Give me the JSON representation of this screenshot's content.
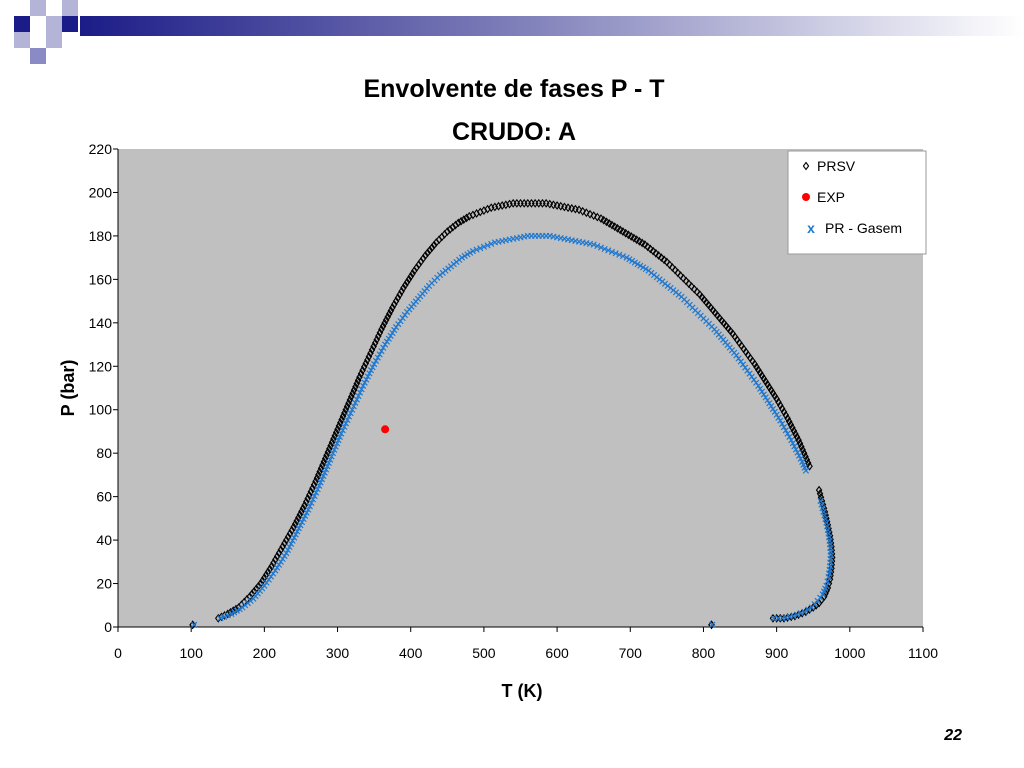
{
  "slide": {
    "page_number": "22"
  },
  "chart_data": {
    "type": "scatter",
    "title": "Envolvente de fases P - T",
    "subtitle": "CRUDO: A",
    "xlabel": "T (K)",
    "ylabel": "P (bar)",
    "xlim": [
      0,
      1100
    ],
    "ylim": [
      0,
      220
    ],
    "xticks": [
      0,
      100,
      200,
      300,
      400,
      500,
      600,
      700,
      800,
      900,
      1000,
      1100
    ],
    "yticks": [
      0,
      20,
      40,
      60,
      80,
      100,
      120,
      140,
      160,
      180,
      200,
      220
    ],
    "grid": false,
    "legend_position": "top-right",
    "plot_background": "#c0c0c0",
    "series": [
      {
        "name": "PRSV",
        "marker": "diamond-open",
        "color": "#000000",
        "segments": [
          [
            [
              102,
              1
            ],
            [
              102,
              1
            ]
          ],
          [
            [
              137,
              4
            ],
            [
              150,
              6
            ],
            [
              165,
              9
            ],
            [
              180,
              14
            ],
            [
              195,
              20
            ],
            [
              210,
              28
            ],
            [
              225,
              37
            ],
            [
              240,
              46
            ],
            [
              255,
              56
            ],
            [
              270,
              67
            ],
            [
              285,
              79
            ],
            [
              300,
              91
            ],
            [
              315,
              103
            ],
            [
              330,
              115
            ],
            [
              345,
              126
            ],
            [
              360,
              137
            ],
            [
              375,
              147
            ],
            [
              390,
              156
            ],
            [
              405,
              164
            ],
            [
              420,
              171
            ],
            [
              435,
              177
            ],
            [
              450,
              182
            ],
            [
              465,
              186
            ],
            [
              480,
              189
            ],
            [
              495,
              191
            ],
            [
              510,
              193
            ],
            [
              525,
              194
            ],
            [
              540,
              195
            ],
            [
              555,
              195
            ],
            [
              570,
              195
            ],
            [
              585,
              195
            ],
            [
              600,
              194
            ],
            [
              615,
              193
            ],
            [
              630,
              192
            ],
            [
              645,
              190
            ],
            [
              660,
              188
            ],
            [
              675,
              185
            ],
            [
              690,
              182
            ],
            [
              705,
              179
            ],
            [
              720,
              176
            ],
            [
              735,
              172
            ],
            [
              750,
              168
            ],
            [
              765,
              163
            ],
            [
              780,
              158
            ],
            [
              795,
              153
            ],
            [
              810,
              147
            ],
            [
              825,
              141
            ],
            [
              840,
              135
            ],
            [
              855,
              128
            ],
            [
              870,
              121
            ],
            [
              885,
              113
            ],
            [
              900,
              105
            ],
            [
              915,
              96
            ],
            [
              930,
              86
            ],
            [
              945,
              74
            ]
          ],
          [
            [
              958,
              63
            ],
            [
              962,
              58
            ],
            [
              966,
              53
            ],
            [
              970,
              47
            ],
            [
              973,
              42
            ],
            [
              975,
              37
            ],
            [
              976,
              32
            ],
            [
              975,
              27
            ],
            [
              973,
              22
            ],
            [
              970,
              18
            ],
            [
              965,
              14
            ],
            [
              958,
              11
            ],
            [
              950,
              9
            ],
            [
              940,
              7
            ],
            [
              925,
              5
            ],
            [
              910,
              4
            ],
            [
              895,
              4
            ]
          ],
          [
            [
              811,
              1
            ],
            [
              811,
              1
            ]
          ]
        ]
      },
      {
        "name": "EXP",
        "marker": "circle",
        "color": "#ff0000",
        "points": [
          [
            365,
            91
          ]
        ]
      },
      {
        "name": "PR - Gasem",
        "marker": "x",
        "color": "#1f78d0",
        "segments": [
          [
            [
              104,
              1
            ],
            [
              104,
              1
            ]
          ],
          [
            [
              140,
              4
            ],
            [
              155,
              6
            ],
            [
              170,
              9
            ],
            [
              185,
              13
            ],
            [
              200,
              19
            ],
            [
              215,
              26
            ],
            [
              230,
              34
            ],
            [
              245,
              44
            ],
            [
              260,
              54
            ],
            [
              275,
              65
            ],
            [
              290,
              77
            ],
            [
              305,
              89
            ],
            [
              320,
              100
            ],
            [
              335,
              111
            ],
            [
              350,
              121
            ],
            [
              365,
              130
            ],
            [
              380,
              138
            ],
            [
              395,
              145
            ],
            [
              410,
              151
            ],
            [
              425,
              157
            ],
            [
              440,
              162
            ],
            [
              455,
              166
            ],
            [
              470,
              170
            ],
            [
              485,
              173
            ],
            [
              500,
              175
            ],
            [
              515,
              177
            ],
            [
              530,
              178
            ],
            [
              545,
              179
            ],
            [
              560,
              180
            ],
            [
              575,
              180
            ],
            [
              590,
              180
            ],
            [
              605,
              179
            ],
            [
              620,
              178
            ],
            [
              635,
              177
            ],
            [
              650,
              176
            ],
            [
              665,
              174
            ],
            [
              680,
              172
            ],
            [
              695,
              170
            ],
            [
              710,
              167
            ],
            [
              725,
              164
            ],
            [
              740,
              160
            ],
            [
              755,
              156
            ],
            [
              770,
              152
            ],
            [
              785,
              147
            ],
            [
              800,
              142
            ],
            [
              815,
              137
            ],
            [
              830,
              131
            ],
            [
              845,
              125
            ],
            [
              860,
              118
            ],
            [
              875,
              111
            ],
            [
              890,
              103
            ],
            [
              905,
              95
            ],
            [
              920,
              86
            ],
            [
              935,
              76
            ],
            [
              940,
              72
            ]
          ],
          [
            [
              960,
              58
            ],
            [
              964,
              53
            ],
            [
              968,
              48
            ],
            [
              971,
              43
            ],
            [
              973,
              38
            ],
            [
              974,
              33
            ],
            [
              973,
              28
            ],
            [
              971,
              23
            ],
            [
              968,
              19
            ],
            [
              963,
              15
            ],
            [
              956,
              12
            ],
            [
              948,
              9
            ],
            [
              938,
              7
            ],
            [
              923,
              5
            ],
            [
              908,
              4
            ],
            [
              896,
              4
            ]
          ],
          [
            [
              812,
              1
            ],
            [
              812,
              1
            ]
          ]
        ]
      }
    ]
  }
}
